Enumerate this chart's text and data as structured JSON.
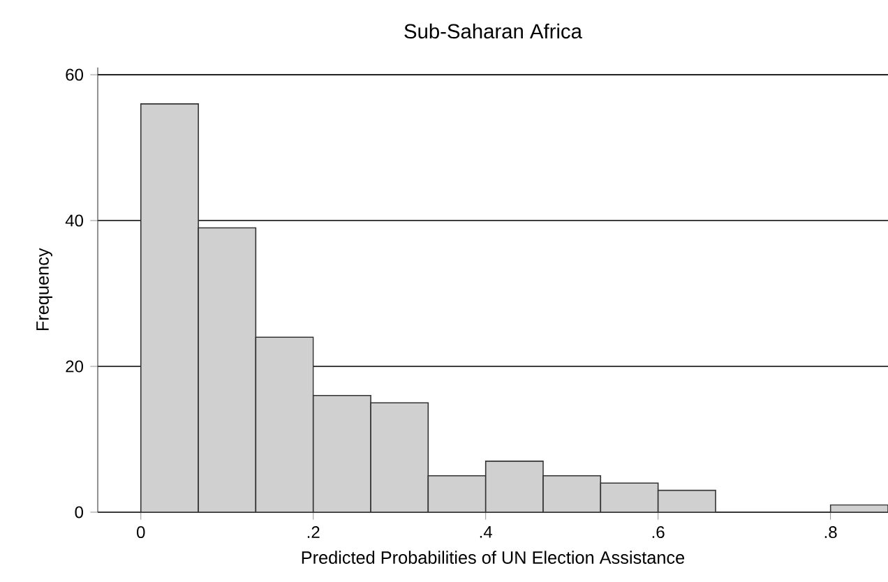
{
  "chart_data": {
    "type": "histogram",
    "title": "Sub-Saharan Africa",
    "xlabel": "Predicted Probabilities of UN Election Assistance",
    "ylabel": "Frequency",
    "bins": [
      0,
      0.0667,
      0.1333,
      0.2,
      0.2667,
      0.3333,
      0.4,
      0.4667,
      0.5333,
      0.6,
      0.6667,
      0.7333,
      0.8,
      0.8667
    ],
    "values": [
      56,
      39,
      24,
      16,
      15,
      5,
      7,
      5,
      4,
      3,
      0,
      0,
      1
    ],
    "color": "#d0d0d0",
    "xlim": [
      -0.05,
      0.8667
    ],
    "ylim": [
      0,
      61
    ],
    "xticks": [
      0,
      {
        "value": 0.2,
        "label": ".2"
      },
      {
        "value": 0.4,
        "label": ".4"
      },
      {
        "value": 0.6,
        "label": ".6"
      },
      {
        "value": 0.8,
        "label": ".8"
      }
    ],
    "yticks": [
      0,
      20,
      40,
      60
    ],
    "grid": "y"
  }
}
